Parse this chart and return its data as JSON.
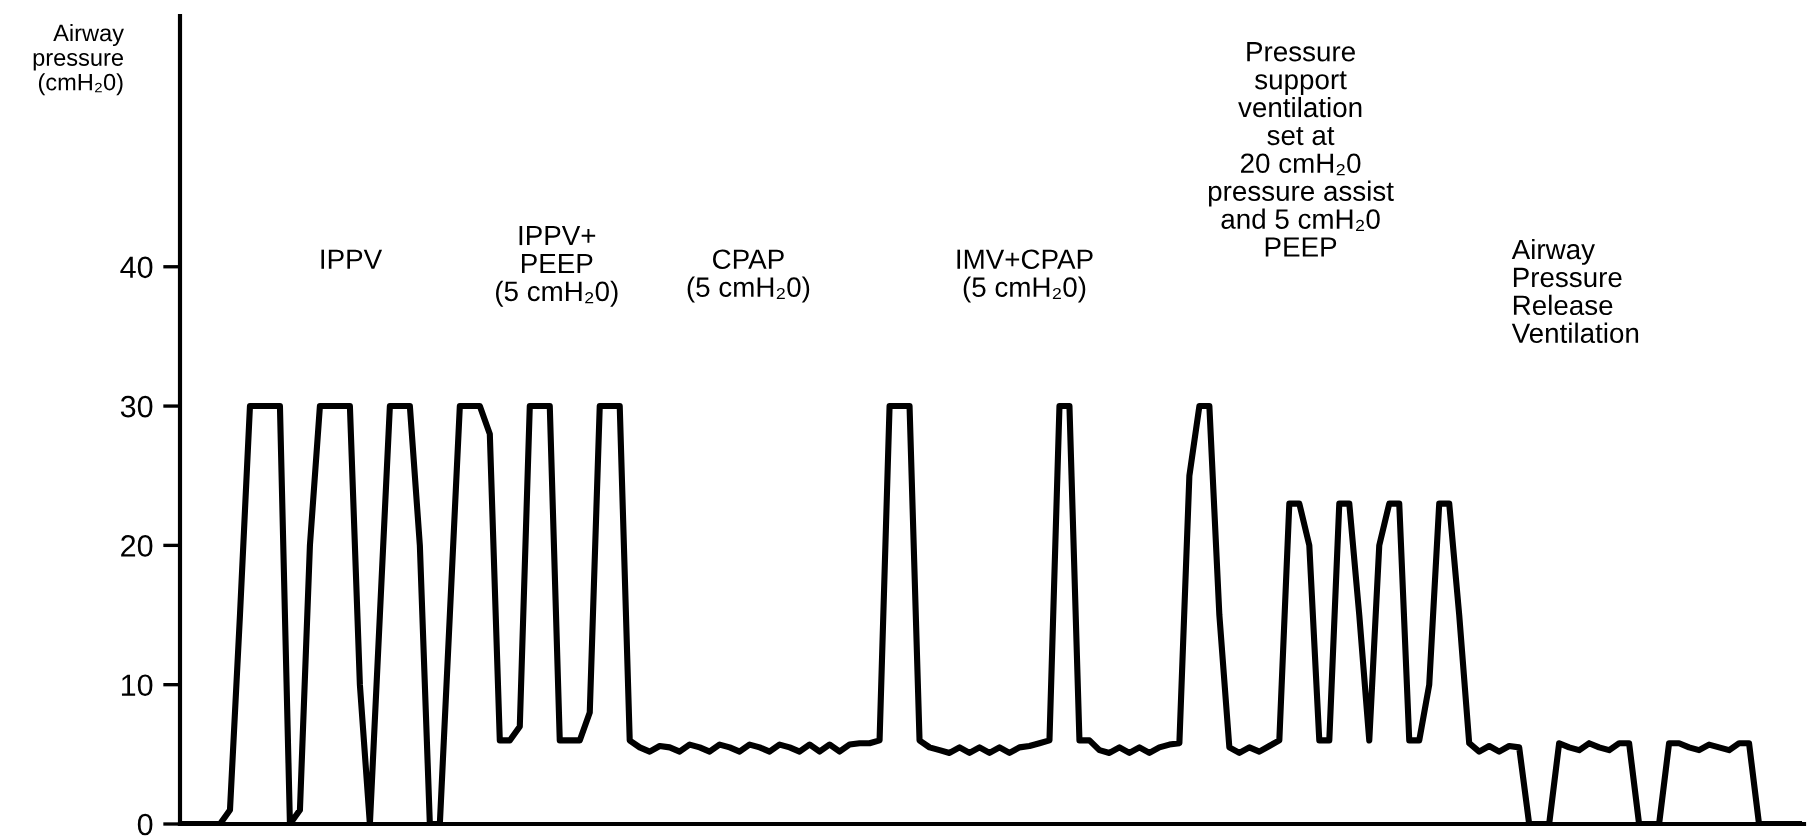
{
  "chart_data": {
    "type": "line",
    "ylabel": "Airway\npressure\n(cmH₂0)",
    "annotations": [
      "IPPV",
      "IPPV+\nPEEP\n(5 cmH₂0)",
      "CPAP\n(5 cmH₂0)",
      "IMV+CPAP\n(5 cmH₂0)",
      "Pressure\nsupport\nventilation\nset at\n20 cmH₂0\npressure assist\nand 5 cmH₂0\nPEEP",
      "Airway\nPressure\nRelease\nVentilation"
    ],
    "categories": [
      null,
      null,
      null,
      null,
      null,
      null,
      null,
      null,
      null,
      null,
      null,
      null,
      null,
      null,
      null,
      null,
      null,
      null,
      null,
      null,
      null,
      null,
      null,
      null,
      null,
      null,
      null,
      null,
      null,
      null,
      null,
      null,
      null,
      null,
      null,
      null,
      null,
      null,
      null,
      null,
      null,
      null,
      null,
      null,
      null,
      null,
      null,
      null,
      null,
      null,
      null,
      null,
      null,
      null,
      null,
      null,
      null,
      null,
      null,
      null,
      null,
      null,
      null,
      null,
      null,
      null,
      null,
      null,
      null,
      null,
      null,
      null,
      null,
      null,
      null,
      null,
      null,
      null,
      null,
      null,
      null,
      null,
      null,
      null,
      null,
      null,
      null,
      null,
      null,
      null,
      null,
      null,
      null,
      null,
      null,
      null,
      null,
      null,
      null,
      null,
      null,
      null,
      null,
      null,
      null,
      null,
      null,
      null,
      null,
      null,
      null,
      null,
      null,
      null,
      null,
      null,
      null,
      null,
      null,
      null,
      null,
      null,
      null,
      null,
      null,
      null,
      null,
      null,
      null,
      null,
      null,
      null,
      null,
      null,
      null,
      null,
      null,
      null,
      null,
      null,
      null,
      null,
      null,
      null,
      null,
      null,
      null,
      null,
      null,
      null,
      null,
      null,
      null,
      null,
      null,
      null,
      null,
      null,
      null,
      null,
      null,
      null,
      null
    ],
    "series": [
      {
        "color": "#000000",
        "values": [
          0,
          0,
          0,
          0,
          0,
          1,
          15,
          30,
          30,
          30,
          30,
          0,
          1,
          20,
          30,
          30,
          30,
          30,
          10,
          0,
          15,
          30,
          30,
          30,
          20,
          0,
          0,
          15,
          30,
          30,
          30,
          28,
          6,
          6,
          7,
          30,
          30,
          30,
          6,
          6,
          6,
          8,
          30,
          30,
          30,
          6,
          5.5,
          5.2,
          5.6,
          5.5,
          5.2,
          5.7,
          5.5,
          5.2,
          5.7,
          5.5,
          5.2,
          5.7,
          5.5,
          5.2,
          5.7,
          5.5,
          5.2,
          5.7,
          5.2,
          5.7,
          5.2,
          5.7,
          5.8,
          5.8,
          6,
          30,
          30,
          30,
          6,
          5.5,
          5.3,
          5.1,
          5.5,
          5.1,
          5.5,
          5.1,
          5.5,
          5.1,
          5.5,
          5.6,
          5.8,
          6,
          30,
          30,
          6,
          6,
          5.3,
          5.1,
          5.5,
          5.1,
          5.5,
          5.1,
          5.5,
          5.7,
          5.8,
          25,
          30,
          30,
          15,
          5.5,
          5.1,
          5.5,
          5.2,
          5.6,
          6,
          23,
          23,
          20,
          6,
          6,
          23,
          23,
          15,
          6,
          20,
          23,
          23,
          6,
          6,
          10,
          23,
          23,
          15,
          5.8,
          5.2,
          5.6,
          5.2,
          5.6,
          5.5,
          0,
          0,
          0,
          5.8,
          5.5,
          5.3,
          5.8,
          5.5,
          5.3,
          5.8,
          5.8,
          0,
          0,
          0,
          5.8,
          5.8,
          5.5,
          5.3,
          5.7,
          5.5,
          5.3,
          5.8,
          5.8,
          0,
          0,
          0,
          0,
          0
        ]
      }
    ],
    "ylim": [
      0,
      58
    ],
    "yticks": [
      0,
      10,
      20,
      30,
      40
    ],
    "tick_labels": "y",
    "grid": false,
    "legend": false,
    "marker": "none",
    "line_style": "solid"
  }
}
